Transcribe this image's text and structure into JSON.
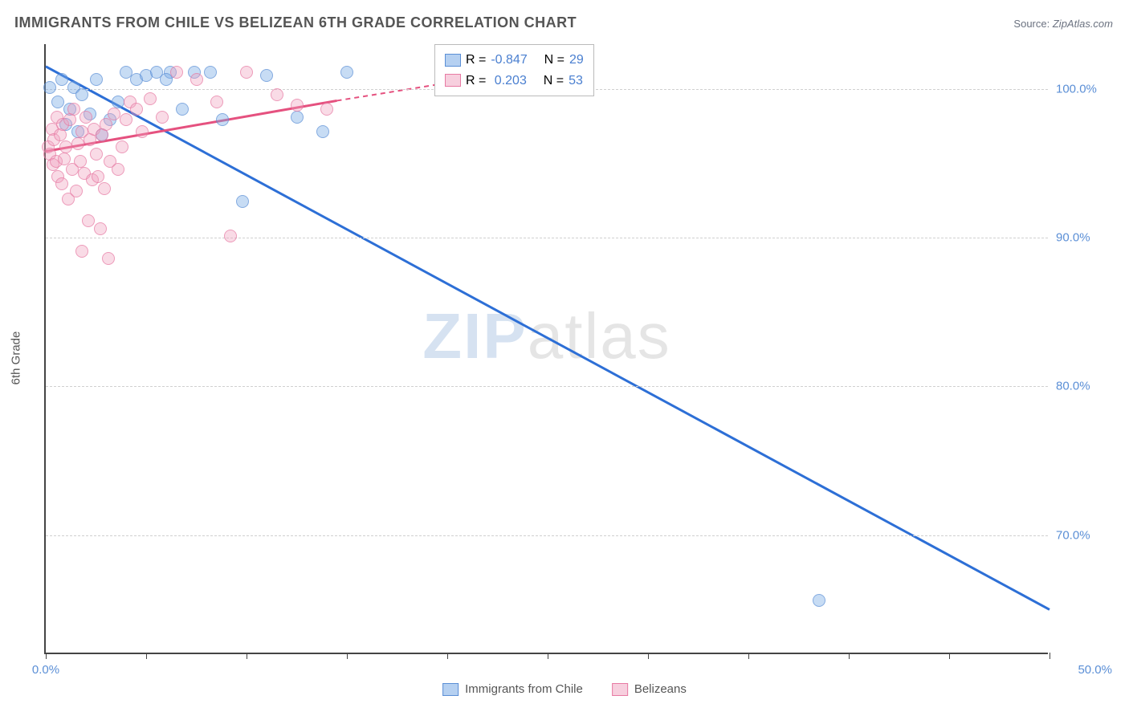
{
  "title": "IMMIGRANTS FROM CHILE VS BELIZEAN 6TH GRADE CORRELATION CHART",
  "source_label": "Source:",
  "source_value": "ZipAtlas.com",
  "ylabel": "6th Grade",
  "watermark_bold": "ZIP",
  "watermark_light": "atlas",
  "chart": {
    "type": "scatter",
    "xlim": [
      0,
      50
    ],
    "ylim": [
      62,
      103
    ],
    "xtick_positions": [
      0,
      5,
      10,
      15,
      20,
      25,
      30,
      35,
      40,
      45,
      50
    ],
    "xtick_labels": {
      "0": "0.0%",
      "50": "50.0%"
    },
    "ytick_positions": [
      70,
      80,
      90,
      100
    ],
    "ytick_labels": [
      "70.0%",
      "80.0%",
      "90.0%",
      "100.0%"
    ],
    "grid_color": "#d0d0d0",
    "axis_color": "#444444",
    "background_color": "#ffffff",
    "label_color": "#5b8fd6",
    "series": [
      {
        "name": "Immigrants from Chile",
        "color_fill": "rgba(120,170,230,0.55)",
        "color_stroke": "#5b8fd6",
        "marker_size": 16,
        "R": "-0.847",
        "N": "29",
        "regression": {
          "x1": 0,
          "y1": 101.5,
          "x2": 50,
          "y2": 65.0,
          "stroke": "#2d6fd6",
          "width": 3,
          "dash": "none"
        },
        "points": [
          [
            0.2,
            100.0
          ],
          [
            0.6,
            99.0
          ],
          [
            0.8,
            100.5
          ],
          [
            1.0,
            97.5
          ],
          [
            1.2,
            98.5
          ],
          [
            1.4,
            100.0
          ],
          [
            1.6,
            97.0
          ],
          [
            1.8,
            99.5
          ],
          [
            2.2,
            98.2
          ],
          [
            2.5,
            100.5
          ],
          [
            2.8,
            96.8
          ],
          [
            3.2,
            97.8
          ],
          [
            3.6,
            99.0
          ],
          [
            4.0,
            101.0
          ],
          [
            4.5,
            100.5
          ],
          [
            5.0,
            100.8
          ],
          [
            5.5,
            101.0
          ],
          [
            6.2,
            101.0
          ],
          [
            6.8,
            98.5
          ],
          [
            7.4,
            101.0
          ],
          [
            8.2,
            101.0
          ],
          [
            8.8,
            97.8
          ],
          [
            9.8,
            92.3
          ],
          [
            11.0,
            100.8
          ],
          [
            12.5,
            98.0
          ],
          [
            13.8,
            97.0
          ],
          [
            15.0,
            101.0
          ],
          [
            38.5,
            65.5
          ],
          [
            6.0,
            100.5
          ]
        ]
      },
      {
        "name": "Belizeans",
        "color_fill": "rgba(240,160,190,0.5)",
        "color_stroke": "#e77aa3",
        "marker_size": 16,
        "R": "0.203",
        "N": "53",
        "regression": {
          "x1": 0,
          "y1": 95.8,
          "x2": 14.5,
          "y2": 99.2,
          "stroke": "#e5517f",
          "width": 3,
          "dash": "none"
        },
        "regression_ext": {
          "x1": 14.5,
          "y1": 99.2,
          "x2": 20.5,
          "y2": 100.5,
          "stroke": "#e5517f",
          "width": 2,
          "dash": "6,5"
        },
        "points": [
          [
            0.1,
            96.0
          ],
          [
            0.2,
            95.5
          ],
          [
            0.3,
            97.2
          ],
          [
            0.35,
            94.8
          ],
          [
            0.4,
            96.5
          ],
          [
            0.5,
            95.0
          ],
          [
            0.55,
            98.0
          ],
          [
            0.6,
            94.0
          ],
          [
            0.7,
            96.8
          ],
          [
            0.8,
            93.5
          ],
          [
            0.85,
            97.5
          ],
          [
            0.9,
            95.2
          ],
          [
            1.0,
            96.0
          ],
          [
            1.1,
            92.5
          ],
          [
            1.2,
            97.8
          ],
          [
            1.3,
            94.5
          ],
          [
            1.4,
            98.5
          ],
          [
            1.5,
            93.0
          ],
          [
            1.6,
            96.2
          ],
          [
            1.7,
            95.0
          ],
          [
            1.8,
            97.0
          ],
          [
            1.8,
            89.0
          ],
          [
            1.9,
            94.2
          ],
          [
            2.0,
            98.0
          ],
          [
            2.1,
            91.0
          ],
          [
            2.2,
            96.5
          ],
          [
            2.3,
            93.8
          ],
          [
            2.4,
            97.2
          ],
          [
            2.5,
            95.5
          ],
          [
            2.6,
            94.0
          ],
          [
            2.7,
            90.5
          ],
          [
            2.8,
            96.8
          ],
          [
            2.9,
            93.2
          ],
          [
            3.0,
            97.5
          ],
          [
            3.1,
            88.5
          ],
          [
            3.2,
            95.0
          ],
          [
            3.4,
            98.2
          ],
          [
            3.6,
            94.5
          ],
          [
            3.8,
            96.0
          ],
          [
            4.0,
            97.8
          ],
          [
            4.2,
            99.0
          ],
          [
            4.5,
            98.5
          ],
          [
            4.8,
            97.0
          ],
          [
            5.2,
            99.2
          ],
          [
            5.8,
            98.0
          ],
          [
            6.5,
            101.0
          ],
          [
            7.5,
            100.5
          ],
          [
            8.5,
            99.0
          ],
          [
            9.2,
            90.0
          ],
          [
            10.0,
            101.0
          ],
          [
            11.5,
            99.5
          ],
          [
            12.5,
            98.8
          ],
          [
            14.0,
            98.5
          ]
        ]
      }
    ]
  },
  "stats_legend": {
    "r_label": "R =",
    "n_label": "N ="
  },
  "bottom_legend": {
    "series1": "Immigrants from Chile",
    "series2": "Belizeans"
  }
}
